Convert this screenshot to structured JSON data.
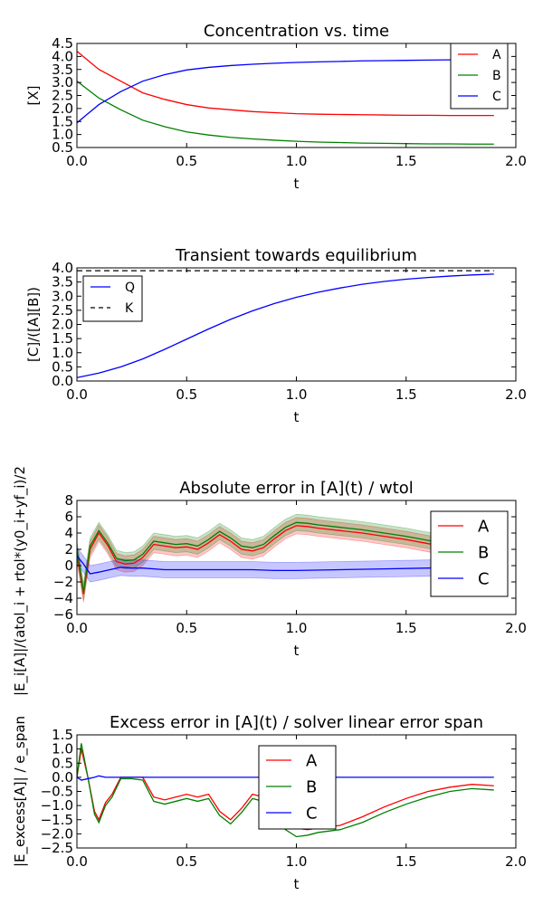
{
  "chart_data": [
    {
      "type": "line",
      "title": "Concentration vs. time",
      "xlabel": "t",
      "ylabel": "[X]",
      "xlim": [
        0,
        2.0
      ],
      "ylim": [
        0.5,
        4.5
      ],
      "xticks": [
        "0.0",
        "0.5",
        "1.0",
        "1.5",
        "2.0"
      ],
      "yticks": [
        "0.5",
        "1.0",
        "1.5",
        "2.0",
        "2.5",
        "3.0",
        "3.5",
        "4.0",
        "4.5"
      ],
      "legend_position": "top-right",
      "grid": false,
      "series": [
        {
          "name": "A",
          "color": "#ff0000",
          "x": [
            0,
            0.1,
            0.2,
            0.3,
            0.4,
            0.5,
            0.6,
            0.7,
            0.8,
            0.9,
            1.0,
            1.1,
            1.2,
            1.3,
            1.4,
            1.5,
            1.6,
            1.7,
            1.8,
            1.9
          ],
          "values": [
            4.2,
            3.5,
            3.05,
            2.6,
            2.35,
            2.15,
            2.02,
            1.95,
            1.88,
            1.84,
            1.8,
            1.78,
            1.77,
            1.76,
            1.75,
            1.74,
            1.74,
            1.73,
            1.73,
            1.73
          ]
        },
        {
          "name": "B",
          "color": "#008000",
          "x": [
            0,
            0.1,
            0.2,
            0.3,
            0.4,
            0.5,
            0.6,
            0.7,
            0.8,
            0.9,
            1.0,
            1.1,
            1.2,
            1.3,
            1.4,
            1.5,
            1.6,
            1.7,
            1.8,
            1.9
          ],
          "values": [
            3.05,
            2.4,
            1.95,
            1.55,
            1.3,
            1.1,
            0.98,
            0.89,
            0.83,
            0.78,
            0.74,
            0.71,
            0.69,
            0.67,
            0.66,
            0.65,
            0.64,
            0.64,
            0.63,
            0.63
          ]
        },
        {
          "name": "C",
          "color": "#0000ff",
          "x": [
            0,
            0.1,
            0.2,
            0.3,
            0.4,
            0.5,
            0.6,
            0.7,
            0.8,
            0.9,
            1.0,
            1.1,
            1.2,
            1.3,
            1.4,
            1.5,
            1.6,
            1.7,
            1.8,
            1.9
          ],
          "values": [
            1.45,
            2.15,
            2.65,
            3.05,
            3.3,
            3.48,
            3.58,
            3.65,
            3.7,
            3.74,
            3.77,
            3.79,
            3.81,
            3.83,
            3.84,
            3.85,
            3.86,
            3.87,
            3.87,
            3.88
          ]
        }
      ]
    },
    {
      "type": "line",
      "title": "Transient towards equilibrium",
      "xlabel": "t",
      "ylabel": "[C]/([A][B])",
      "xlim": [
        0,
        2.0
      ],
      "ylim": [
        0.0,
        4.0
      ],
      "xticks": [
        "0.0",
        "0.5",
        "1.0",
        "1.5",
        "2.0"
      ],
      "yticks": [
        "0.0",
        "0.5",
        "1.0",
        "1.5",
        "2.0",
        "2.5",
        "3.0",
        "3.5",
        "4.0"
      ],
      "legend_position": "top-left",
      "grid": false,
      "series": [
        {
          "name": "Q",
          "color": "#0000ff",
          "x": [
            0,
            0.1,
            0.2,
            0.3,
            0.4,
            0.5,
            0.6,
            0.7,
            0.8,
            0.9,
            1.0,
            1.1,
            1.2,
            1.3,
            1.4,
            1.5,
            1.6,
            1.7,
            1.8,
            1.9
          ],
          "values": [
            0.12,
            0.28,
            0.5,
            0.78,
            1.12,
            1.48,
            1.84,
            2.18,
            2.48,
            2.74,
            2.96,
            3.14,
            3.29,
            3.42,
            3.52,
            3.6,
            3.66,
            3.71,
            3.75,
            3.78
          ]
        },
        {
          "name": "K",
          "color": "#000000",
          "dashed": true,
          "x": [
            0,
            1.9
          ],
          "values": [
            3.9,
            3.9
          ]
        }
      ]
    },
    {
      "type": "line",
      "title": "Absolute error in [A](t) / wtol",
      "xlabel": "t",
      "ylabel": "|E_i[A]|/(atol_i + rtol*(y0_i+yf_i)/2",
      "xlim": [
        0,
        2.0
      ],
      "ylim": [
        -6,
        8
      ],
      "xticks": [
        "0.0",
        "0.5",
        "1.0",
        "1.5",
        "2.0"
      ],
      "yticks": [
        "−6",
        "−4",
        "−2",
        "0",
        "2",
        "4",
        "6",
        "8"
      ],
      "legend_position": "right",
      "grid": false,
      "band_width": 1.0,
      "series": [
        {
          "name": "A",
          "color": "#ff0000",
          "x": [
            0,
            0.03,
            0.06,
            0.1,
            0.14,
            0.18,
            0.22,
            0.26,
            0.3,
            0.35,
            0.4,
            0.45,
            0.5,
            0.55,
            0.6,
            0.65,
            0.7,
            0.75,
            0.8,
            0.85,
            0.9,
            0.95,
            1.0,
            1.05,
            1.1,
            1.2,
            1.3,
            1.4,
            1.5,
            1.6,
            1.7,
            1.8,
            1.9
          ],
          "values": [
            1.5,
            -3.5,
            2.0,
            4.0,
            2.5,
            0.5,
            0.2,
            0.3,
            1.0,
            2.6,
            2.4,
            2.2,
            2.3,
            2.0,
            2.8,
            3.8,
            3.0,
            2.0,
            1.8,
            2.2,
            3.3,
            4.3,
            4.9,
            4.8,
            4.6,
            4.3,
            4.0,
            3.6,
            3.2,
            2.7,
            2.2,
            1.7,
            1.2
          ]
        },
        {
          "name": "B",
          "color": "#008000",
          "x": [
            0,
            0.03,
            0.06,
            0.1,
            0.14,
            0.18,
            0.22,
            0.26,
            0.3,
            0.35,
            0.4,
            0.45,
            0.5,
            0.55,
            0.6,
            0.65,
            0.7,
            0.75,
            0.8,
            0.85,
            0.9,
            0.95,
            1.0,
            1.05,
            1.1,
            1.2,
            1.3,
            1.4,
            1.5,
            1.6,
            1.7,
            1.8,
            1.9
          ],
          "values": [
            2.0,
            -3.2,
            2.4,
            4.3,
            2.8,
            0.9,
            0.6,
            0.7,
            1.4,
            3.0,
            2.8,
            2.6,
            2.7,
            2.4,
            3.2,
            4.2,
            3.4,
            2.4,
            2.2,
            2.6,
            3.7,
            4.7,
            5.3,
            5.2,
            5.0,
            4.7,
            4.4,
            4.0,
            3.6,
            3.1,
            2.6,
            2.1,
            1.6
          ]
        },
        {
          "name": "C",
          "color": "#0000ff",
          "x": [
            0,
            0.03,
            0.06,
            0.1,
            0.15,
            0.2,
            0.25,
            0.3,
            0.4,
            0.5,
            0.6,
            0.7,
            0.8,
            0.9,
            1.0,
            1.2,
            1.4,
            1.6,
            1.8,
            1.9
          ],
          "values": [
            1.2,
            0.2,
            -1.0,
            -0.8,
            -0.5,
            -0.2,
            -0.3,
            -0.3,
            -0.5,
            -0.5,
            -0.5,
            -0.5,
            -0.5,
            -0.6,
            -0.6,
            -0.5,
            -0.4,
            -0.3,
            -0.2,
            -0.2
          ]
        }
      ]
    },
    {
      "type": "line",
      "title": "Excess error in [A](t) / solver linear error span",
      "xlabel": "t",
      "ylabel": "|E_excess[A]| / e_span",
      "xlim": [
        0,
        2.0
      ],
      "ylim": [
        -2.5,
        1.5
      ],
      "xticks": [
        "0.0",
        "0.5",
        "1.0",
        "1.5",
        "2.0"
      ],
      "yticks": [
        "−2.5",
        "−2.0",
        "−1.5",
        "−1.0",
        "−0.5",
        "0.0",
        "0.5",
        "1.0",
        "1.5"
      ],
      "legend_position": "top-center",
      "grid": false,
      "series": [
        {
          "name": "A",
          "color": "#ff0000",
          "x": [
            0,
            0.02,
            0.05,
            0.08,
            0.1,
            0.13,
            0.16,
            0.2,
            0.25,
            0.3,
            0.35,
            0.4,
            0.45,
            0.5,
            0.55,
            0.6,
            0.65,
            0.7,
            0.75,
            0.8,
            0.85,
            0.9,
            0.95,
            1.0,
            1.05,
            1.1,
            1.2,
            1.3,
            1.4,
            1.5,
            1.6,
            1.7,
            1.8,
            1.9
          ],
          "values": [
            0.0,
            1.0,
            0.0,
            -1.2,
            -1.5,
            -0.9,
            -0.6,
            0.0,
            0.0,
            0.0,
            -0.7,
            -0.8,
            -0.7,
            -0.6,
            -0.7,
            -0.6,
            -1.2,
            -1.5,
            -1.1,
            -0.6,
            -0.7,
            -1.1,
            -1.6,
            -1.8,
            -1.85,
            -1.8,
            -1.7,
            -1.4,
            -1.05,
            -0.75,
            -0.5,
            -0.35,
            -0.25,
            -0.3
          ]
        },
        {
          "name": "B",
          "color": "#008000",
          "x": [
            0,
            0.02,
            0.05,
            0.08,
            0.1,
            0.13,
            0.16,
            0.2,
            0.25,
            0.3,
            0.35,
            0.4,
            0.45,
            0.5,
            0.55,
            0.6,
            0.65,
            0.7,
            0.75,
            0.8,
            0.85,
            0.9,
            0.95,
            1.0,
            1.05,
            1.1,
            1.2,
            1.3,
            1.4,
            1.5,
            1.6,
            1.7,
            1.8,
            1.9
          ],
          "values": [
            0.0,
            1.2,
            0.0,
            -1.3,
            -1.6,
            -1.0,
            -0.7,
            -0.05,
            -0.05,
            -0.1,
            -0.85,
            -0.95,
            -0.85,
            -0.75,
            -0.85,
            -0.75,
            -1.35,
            -1.65,
            -1.25,
            -0.75,
            -0.85,
            -1.25,
            -1.85,
            -2.1,
            -2.05,
            -1.95,
            -1.85,
            -1.6,
            -1.25,
            -0.95,
            -0.7,
            -0.5,
            -0.4,
            -0.45
          ]
        },
        {
          "name": "C",
          "color": "#0000ff",
          "x": [
            0,
            0.02,
            0.05,
            0.08,
            0.1,
            0.13,
            0.2,
            0.5,
            1.0,
            1.5,
            1.9
          ],
          "values": [
            0.0,
            -0.1,
            -0.05,
            0.0,
            0.05,
            0.0,
            0.0,
            0.0,
            0.0,
            0.0,
            0.0
          ]
        }
      ]
    }
  ]
}
